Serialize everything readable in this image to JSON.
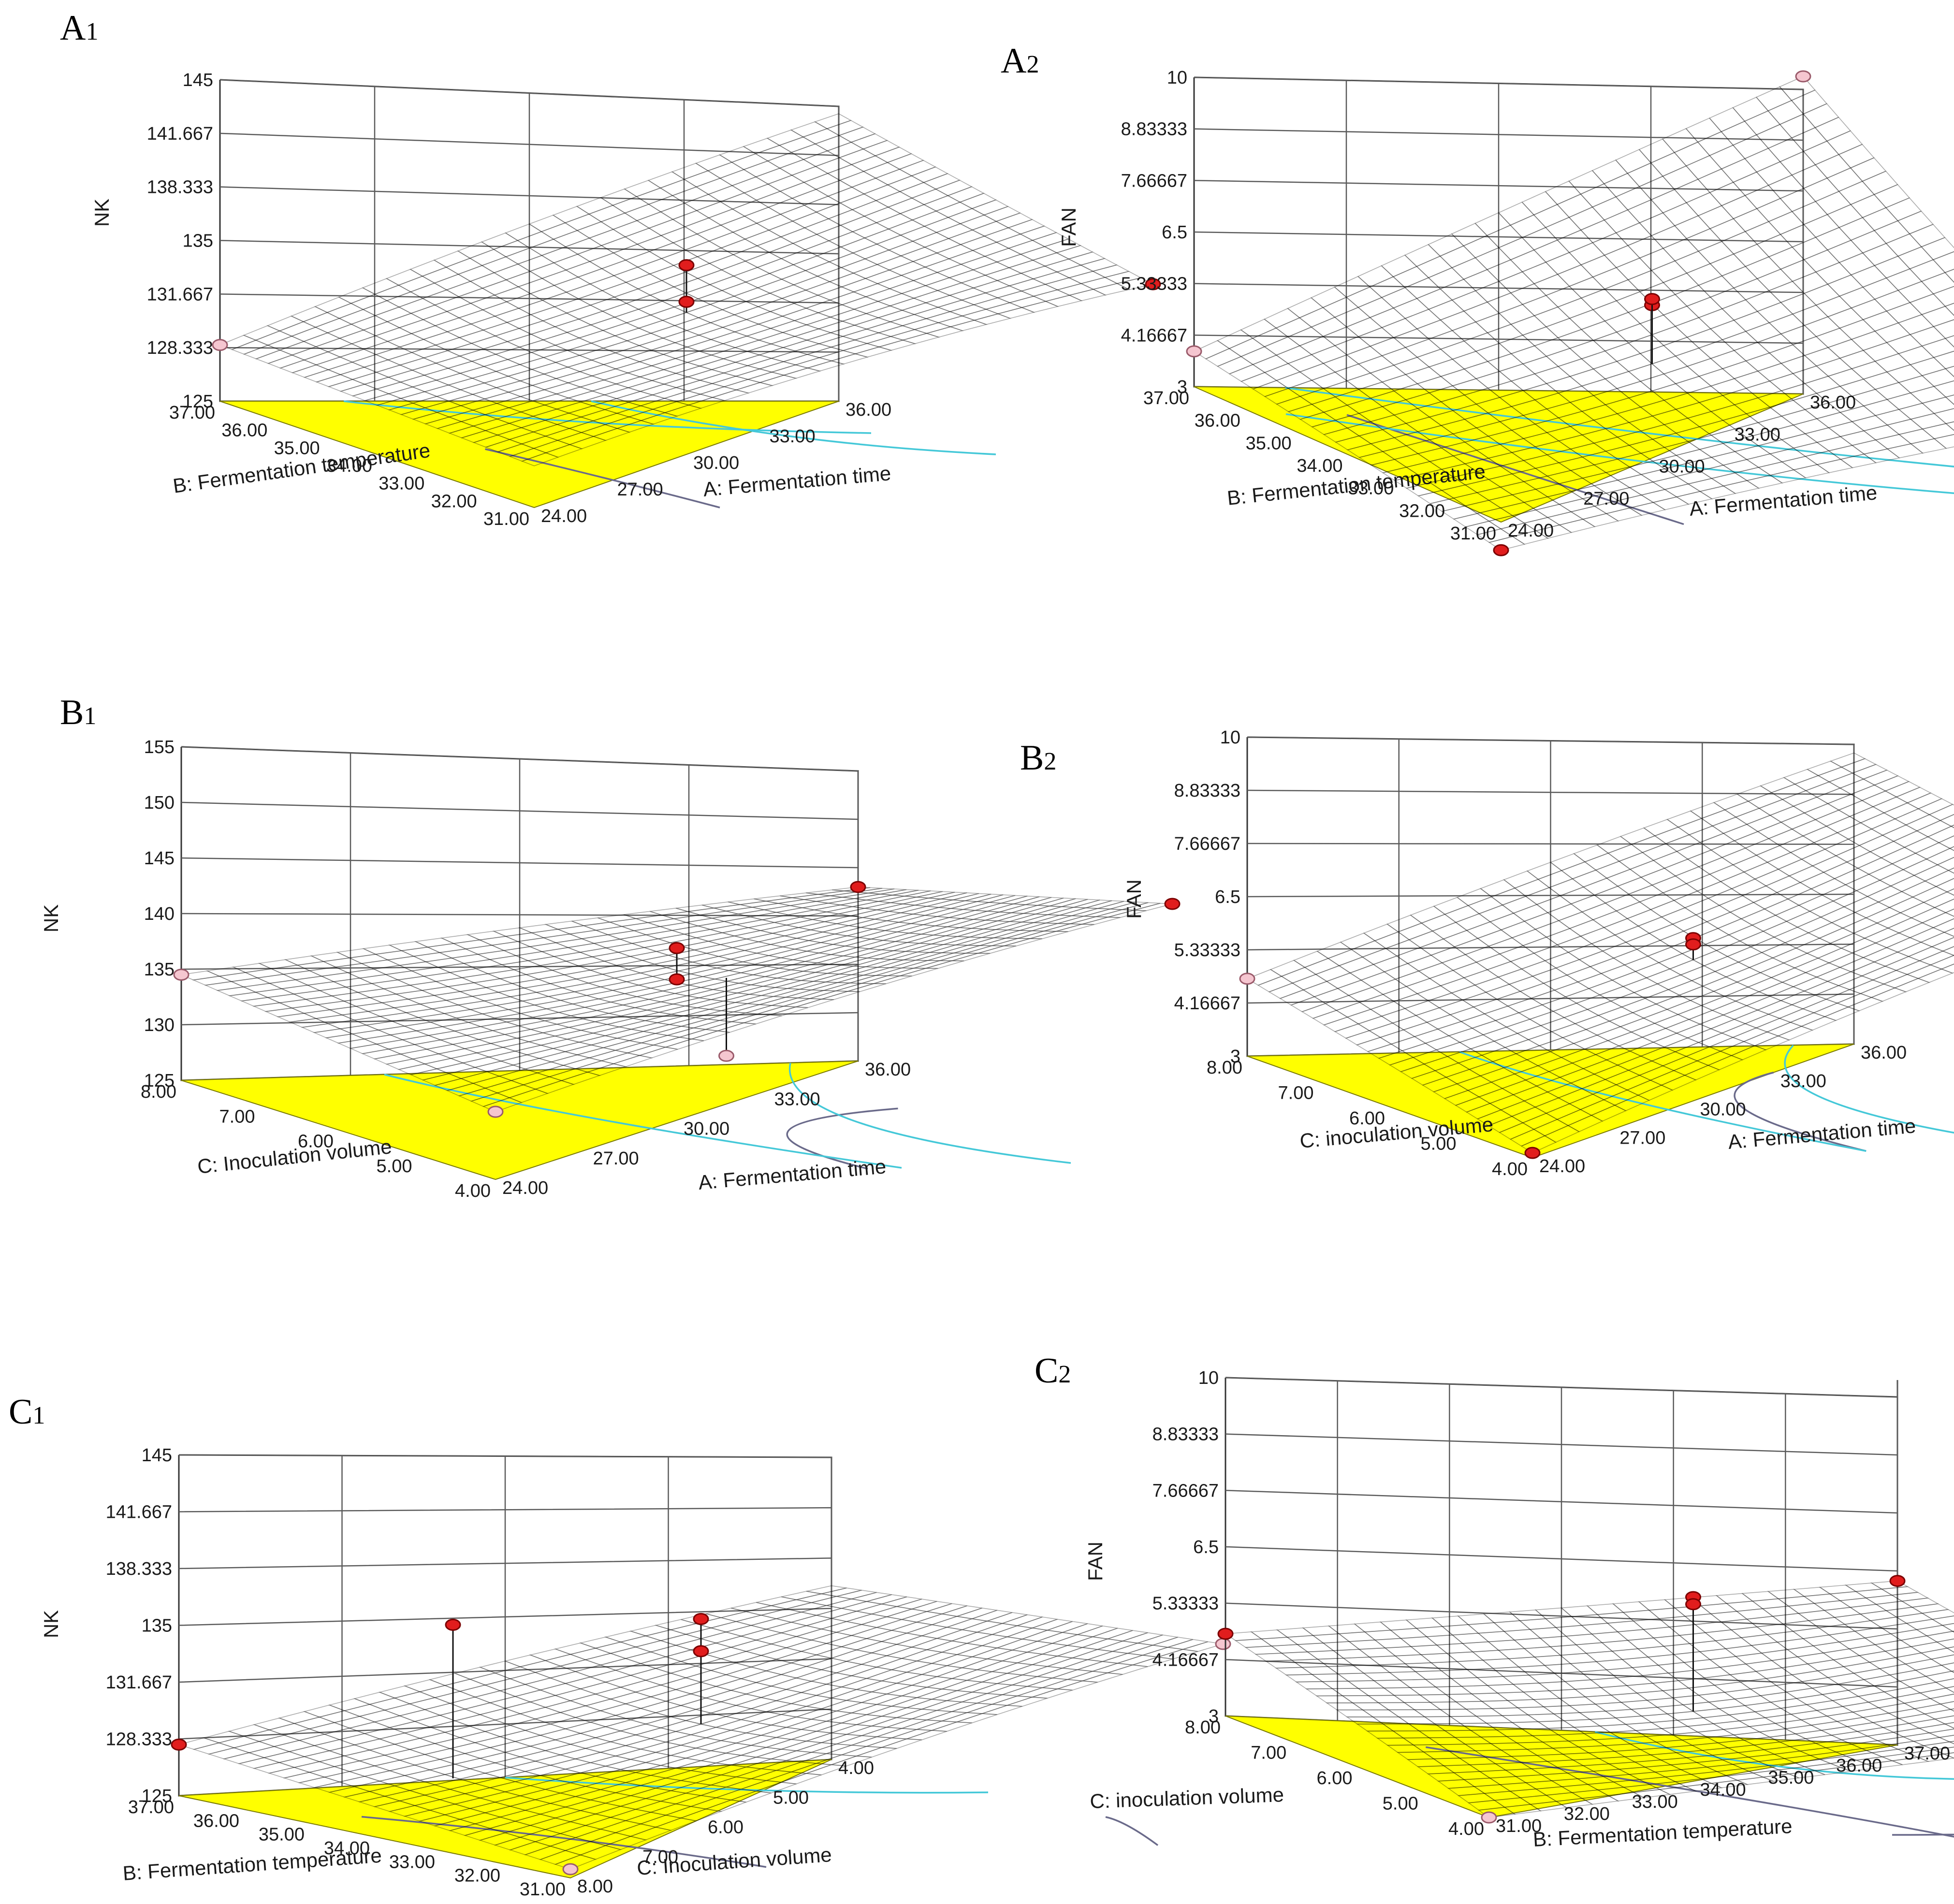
{
  "figure": {
    "panels": [
      {
        "id": "A1",
        "letter": "A",
        "sub": "1"
      },
      {
        "id": "A2",
        "letter": "A",
        "sub": "2"
      },
      {
        "id": "B1",
        "letter": "B",
        "sub": "1"
      },
      {
        "id": "B2",
        "letter": "B",
        "sub": "2"
      },
      {
        "id": "C1",
        "letter": "C",
        "sub": "1"
      },
      {
        "id": "C2",
        "letter": "C",
        "sub": "2"
      }
    ]
  },
  "colors": {
    "floor": "#ffff00",
    "surface_low": "#00008b",
    "surface_mid": "#1f9e89",
    "surface_high": "#3cc83c",
    "surface_top": "#c8781e",
    "design_point_red": "#e11d1d",
    "design_point_pink": "#f5c6d0"
  },
  "chart_data": [
    {
      "panel": "A1",
      "type": "surface3d",
      "z_label": "NK",
      "z_ticks": [
        "125",
        "128.333",
        "131.667",
        "135",
        "138.333",
        "141.667",
        "145"
      ],
      "z_range": [
        125,
        145
      ],
      "left_axis": {
        "label": "B: Fermentation temperature",
        "ticks": [
          "37.00",
          "36.00",
          "35.00",
          "34.00",
          "33.00",
          "32.00",
          "31.00"
        ]
      },
      "right_axis": {
        "label": "A: Fermentation time",
        "ticks": [
          "24.00",
          "27.00",
          "30.00",
          "33.00",
          "36.00"
        ]
      },
      "corner_values": {
        "left": 128.5,
        "front": 127.5,
        "right": 141.5,
        "back": 144.5
      }
    },
    {
      "panel": "A2",
      "type": "surface3d",
      "z_label": "FAN",
      "z_ticks": [
        "3",
        "4.16667",
        "5.33333",
        "6.5",
        "7.66667",
        "8.83333",
        "10"
      ],
      "z_range": [
        3,
        10
      ],
      "left_axis": {
        "label": "B: Fermentation temperature",
        "ticks": [
          "37.00",
          "36.00",
          "35.00",
          "34.00",
          "33.00",
          "32.00",
          "31.00"
        ]
      },
      "right_axis": {
        "label": "A: Fermentation time",
        "ticks": [
          "24.00",
          "27.00",
          "30.00",
          "33.00",
          "36.00"
        ]
      },
      "corner_values": {
        "left": 3.8,
        "front": 2.4,
        "right": 5.8,
        "back": 10.3
      }
    },
    {
      "panel": "B1",
      "type": "surface3d",
      "z_label": "NK",
      "z_ticks": [
        "125",
        "130",
        "135",
        "140",
        "145",
        "150",
        "155"
      ],
      "z_range": [
        125,
        155
      ],
      "left_axis": {
        "label": "C: Inoculation volume",
        "ticks": [
          "8.00",
          "7.00",
          "6.00",
          "5.00",
          "4.00"
        ]
      },
      "right_axis": {
        "label": "A: Fermentation time",
        "ticks": [
          "24.00",
          "27.00",
          "30.00",
          "33.00",
          "36.00"
        ]
      },
      "corner_values": {
        "left": 134.5,
        "front": 131.0,
        "right": 151.5,
        "back": 143.0
      }
    },
    {
      "panel": "B2",
      "type": "surface3d",
      "z_label": "FAN",
      "z_ticks": [
        "3",
        "4.16667",
        "5.33333",
        "6.5",
        "7.66667",
        "8.83333",
        "10"
      ],
      "z_range": [
        3,
        10
      ],
      "left_axis": {
        "label": "C:  inoculation volume",
        "ticks": [
          "8.00",
          "7.00",
          "6.00",
          "5.00",
          "4.00"
        ]
      },
      "right_axis": {
        "label": "A: Fermentation time",
        "ticks": [
          "24.00",
          "27.00",
          "30.00",
          "33.00",
          "36.00"
        ]
      },
      "corner_values": {
        "left": 4.7,
        "front": 3.1,
        "right": 8.7,
        "back": 9.8
      }
    },
    {
      "panel": "C1",
      "type": "surface3d",
      "z_label": "NK",
      "z_ticks": [
        "125",
        "128.333",
        "131.667",
        "135",
        "138.333",
        "141.667",
        "145"
      ],
      "z_range": [
        125,
        145
      ],
      "left_axis": {
        "label": "B: Fermentation temperature",
        "ticks": [
          "37.00",
          "36.00",
          "35.00",
          "34.00",
          "33.00",
          "32.00",
          "31.00"
        ]
      },
      "right_axis": {
        "label": "C: Inoculation volume",
        "ticks": [
          "8.00",
          "7.00",
          "6.00",
          "5.00",
          "4.00"
        ]
      },
      "corner_values": {
        "left": 128.0,
        "front": 125.5,
        "right": 138.3,
        "back": 136.5
      }
    },
    {
      "panel": "C2",
      "type": "surface3d",
      "z_label": "FAN",
      "z_ticks": [
        "3",
        "4.16667",
        "5.33333",
        "6.5",
        "7.66667",
        "8.83333",
        "10"
      ],
      "z_range": [
        3,
        10
      ],
      "left_axis": {
        "label": "C:  inoculation volume",
        "ticks": [
          "8.00",
          "7.00",
          "6.00",
          "5.00",
          "4.00"
        ]
      },
      "right_axis": {
        "label": "B: Fermentation temperature",
        "ticks": [
          "31.00",
          "32.00",
          "33.00",
          "34.00",
          "35.00",
          "36.00",
          "37.00"
        ]
      },
      "corner_values": {
        "left": 4.7,
        "front": 3.0,
        "right": 5.2,
        "back": 6.3
      }
    }
  ]
}
